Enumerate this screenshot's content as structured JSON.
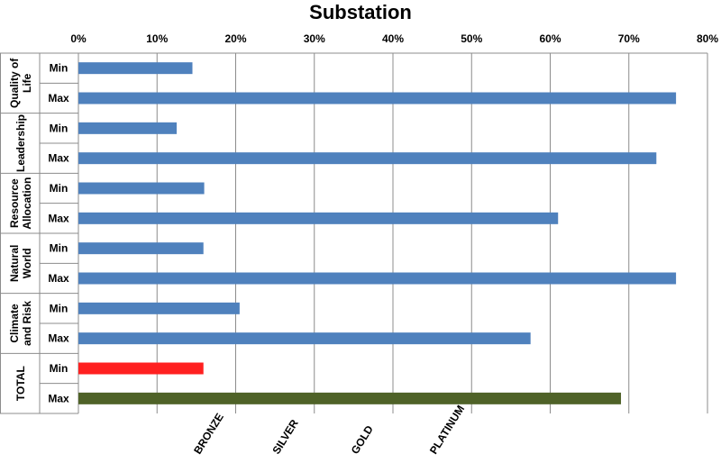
{
  "chart_data": {
    "type": "bar",
    "orientation": "horizontal",
    "title": "Substation",
    "x_ticks": [
      "0%",
      "10%",
      "20%",
      "30%",
      "40%",
      "50%",
      "60%",
      "70%",
      "80%"
    ],
    "xlim": [
      0,
      80
    ],
    "grid": true,
    "categories": [
      {
        "label": "Quality of Life",
        "lines": [
          "Quality of",
          "Life"
        ]
      },
      {
        "label": "Leadership",
        "lines": [
          "Leadership"
        ]
      },
      {
        "label": "Resource Allocation",
        "lines": [
          "Resource",
          "Allocation"
        ]
      },
      {
        "label": "Natural World",
        "lines": [
          "Natural",
          "World"
        ]
      },
      {
        "label": "Climate and Risk",
        "lines": [
          "Climate",
          "and Risk"
        ]
      },
      {
        "label": "TOTAL",
        "lines": [
          "TOTAL"
        ]
      }
    ],
    "sub_labels": [
      "Min",
      "Max"
    ],
    "bars": [
      {
        "category": "Quality of Life",
        "sub": "Min",
        "value": 14.5,
        "color": "#4f81bd"
      },
      {
        "category": "Quality of Life",
        "sub": "Max",
        "value": 76,
        "color": "#4f81bd"
      },
      {
        "category": "Leadership",
        "sub": "Min",
        "value": 12.5,
        "color": "#4f81bd"
      },
      {
        "category": "Leadership",
        "sub": "Max",
        "value": 73.5,
        "color": "#4f81bd"
      },
      {
        "category": "Resource Allocation",
        "sub": "Min",
        "value": 16,
        "color": "#4f81bd"
      },
      {
        "category": "Resource Allocation",
        "sub": "Max",
        "value": 61,
        "color": "#4f81bd"
      },
      {
        "category": "Natural World",
        "sub": "Min",
        "value": 15.9,
        "color": "#4f81bd"
      },
      {
        "category": "Natural World",
        "sub": "Max",
        "value": 76,
        "color": "#4f81bd"
      },
      {
        "category": "Climate and Risk",
        "sub": "Min",
        "value": 20.5,
        "color": "#4f81bd"
      },
      {
        "category": "Climate and Risk",
        "sub": "Max",
        "value": 57.5,
        "color": "#4f81bd"
      },
      {
        "category": "TOTAL",
        "sub": "Min",
        "value": 15.9,
        "color": "#ff2020"
      },
      {
        "category": "TOTAL",
        "sub": "Max",
        "value": 69,
        "color": "#4f6228"
      }
    ],
    "levels": [
      {
        "label": "BRONZE",
        "value": 20
      },
      {
        "label": "SILVER",
        "value": 30
      },
      {
        "label": "GOLD",
        "value": 40
      },
      {
        "label": "PLATINUM",
        "value": 50
      }
    ]
  }
}
